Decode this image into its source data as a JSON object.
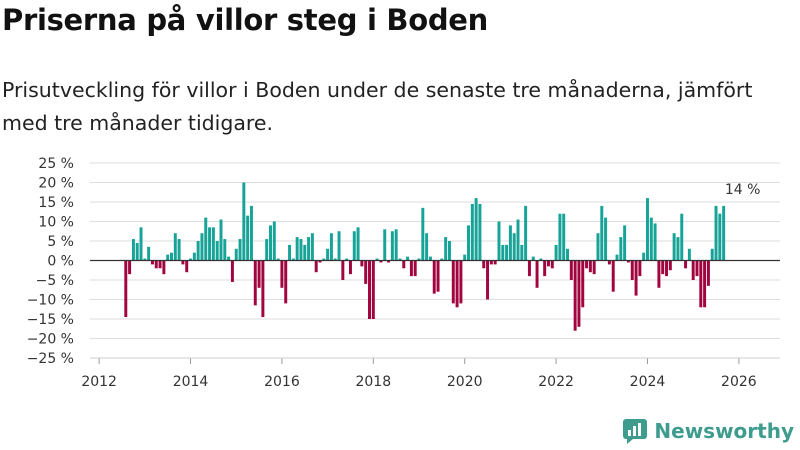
{
  "title": "Priserna på villor steg i Boden",
  "subtitle": "Prisutveckling för villor i Boden under de senaste tre månaderna, jämfört med tre månader tidigare.",
  "brand": "Newsworthy",
  "colors": {
    "positive": "#17a398",
    "negative": "#a1053f",
    "grid": "#dddddd",
    "zero": "#333333",
    "brand": "#3d9c8d"
  },
  "chart_data": {
    "type": "bar",
    "title": "Priserna på villor steg i Boden",
    "xlabel": "",
    "ylabel": "",
    "ylim": [
      -25,
      25
    ],
    "xlim": [
      2011.8,
      2026.9
    ],
    "yticks": [
      -25,
      -20,
      -15,
      -10,
      -5,
      0,
      5,
      10,
      15,
      20,
      25
    ],
    "ytick_labels": [
      "−25 %",
      "−20 %",
      "−15 %",
      "−10 %",
      "−5 %",
      "0 %",
      "5 %",
      "10 %",
      "15 %",
      "20 %",
      "25 %"
    ],
    "xticks": [
      2012,
      2014,
      2016,
      2018,
      2020,
      2022,
      2024,
      2026
    ],
    "xtick_labels": [
      "2012",
      "2014",
      "2016",
      "2018",
      "2020",
      "2022",
      "2024",
      "2026"
    ],
    "start": "2012-08",
    "frequency": "monthly",
    "values": [
      -14.5,
      -3.5,
      5.5,
      4.5,
      8.5,
      0.5,
      3.5,
      -1,
      -2,
      -2,
      -3.5,
      1.5,
      2,
      7,
      5.5,
      -1,
      -3,
      0.5,
      2,
      5,
      7,
      11,
      8.5,
      8.5,
      5,
      10.5,
      5.5,
      1,
      -5.5,
      3,
      5.5,
      20,
      11.5,
      14,
      -11.5,
      -7,
      -14.5,
      5.5,
      9,
      10,
      0.5,
      -7,
      -11,
      4,
      0.5,
      6,
      5.5,
      4,
      6,
      7,
      -3,
      -0.5,
      0.5,
      3,
      7,
      0.5,
      7.5,
      -5,
      0.5,
      -3.5,
      7.5,
      8.5,
      -1.5,
      -6,
      -15,
      -15,
      0.5,
      -0.5,
      8,
      -0.5,
      7.5,
      8,
      0.5,
      -2,
      1,
      -4,
      -4,
      0.5,
      13.5,
      7,
      1,
      -8.5,
      -8,
      0.5,
      6,
      5,
      -11,
      -12,
      -11,
      1.5,
      9,
      14.5,
      16,
      14.5,
      -2,
      -10,
      -1,
      -1,
      10,
      4,
      4,
      9,
      7,
      10.5,
      4,
      14,
      -4,
      1,
      -7,
      0.5,
      -4,
      -1.5,
      -2,
      4,
      12,
      12,
      3,
      -5,
      -18,
      -17,
      -12,
      -2,
      -3,
      -3.5,
      7,
      14,
      11,
      -1,
      -8,
      1.5,
      6,
      9,
      -0.5,
      -5,
      -9,
      -4,
      2,
      16,
      11,
      9.5,
      -7,
      -3.5,
      -4,
      -2.5,
      7,
      6,
      12,
      -2,
      3,
      -5,
      -4,
      -12,
      -12,
      -6.5,
      3,
      14,
      12,
      14
    ],
    "annotations": [
      {
        "text": "14 %",
        "x": "2026-02",
        "y": 14
      }
    ]
  }
}
